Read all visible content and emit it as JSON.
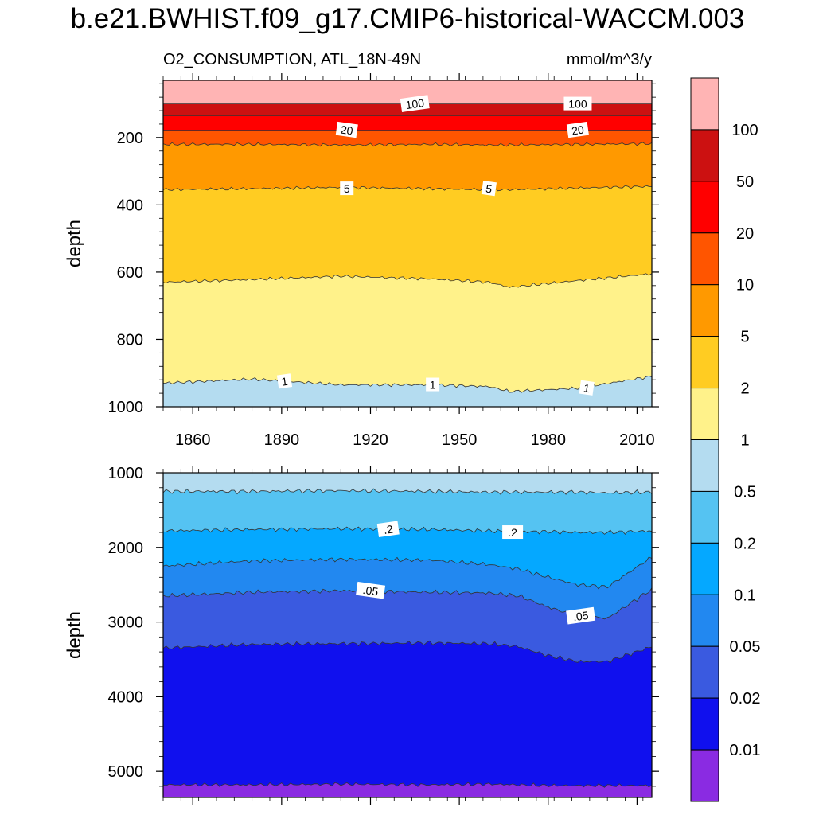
{
  "title": "b.e21.BWHIST.f09_g17.CMIP6-historical-WACCM.003",
  "subtitle_left": "O2_CONSUMPTION, ATL_18N-49N",
  "subtitle_right": "mmol/m^3/y",
  "chart_data": [
    {
      "type": "area",
      "panel": "upper",
      "ylabel": "depth",
      "y_reversed": true,
      "ylim": [
        1000,
        30
      ],
      "xlim": [
        1850,
        2015
      ],
      "x_ticks": [
        1860,
        1890,
        1920,
        1950,
        1980,
        2010
      ],
      "y_ticks": [
        200,
        400,
        600,
        800,
        1000
      ],
      "x": [
        1850,
        1880,
        1910,
        1940,
        1960,
        1967,
        1990,
        2015
      ],
      "boundaries": [
        {
          "level": 100,
          "depths": [
            100,
            100,
            100,
            100,
            100,
            100,
            100,
            100
          ]
        },
        {
          "level": 50,
          "depths": [
            135,
            135,
            135,
            135,
            135,
            135,
            135,
            135
          ]
        },
        {
          "level": 20,
          "depths": [
            178,
            178,
            178,
            178,
            178,
            178,
            178,
            178
          ]
        },
        {
          "level": 10,
          "depths": [
            220,
            220,
            222,
            220,
            222,
            222,
            220,
            218
          ]
        },
        {
          "level": 5,
          "depths": [
            355,
            352,
            348,
            352,
            355,
            355,
            350,
            345
          ]
        },
        {
          "level": 2,
          "depths": [
            630,
            622,
            612,
            620,
            630,
            645,
            625,
            605
          ]
        },
        {
          "level": 1,
          "depths": [
            930,
            918,
            935,
            935,
            940,
            955,
            945,
            910
          ]
        }
      ],
      "contour_labels": [
        {
          "text": "100",
          "x": 1935,
          "depth": 100
        },
        {
          "text": "100",
          "x": 1990,
          "depth": 100
        },
        {
          "text": "20",
          "x": 1912,
          "depth": 178
        },
        {
          "text": "20",
          "x": 1990,
          "depth": 178
        },
        {
          "text": "5",
          "x": 1912,
          "depth": 352
        },
        {
          "text": "5",
          "x": 1960,
          "depth": 352
        },
        {
          "text": "1",
          "x": 1891,
          "depth": 925
        },
        {
          "text": "1",
          "x": 1941,
          "depth": 935
        },
        {
          "text": "1",
          "x": 1993,
          "depth": 945
        }
      ]
    },
    {
      "type": "area",
      "panel": "lower",
      "ylabel": "depth",
      "y_reversed": true,
      "ylim": [
        5350,
        1000
      ],
      "xlim": [
        1850,
        2015
      ],
      "x_ticks": [
        1860,
        1890,
        1920,
        1950,
        1980,
        2010
      ],
      "y_ticks": [
        1000,
        2000,
        3000,
        4000,
        5000
      ],
      "x": [
        1850,
        1880,
        1910,
        1940,
        1960,
        1970,
        1980,
        1990,
        2000,
        2015
      ],
      "boundaries": [
        {
          "level": 0.5,
          "depths": [
            1250,
            1250,
            1240,
            1250,
            1260,
            1260,
            1260,
            1260,
            1270,
            1260
          ]
        },
        {
          "level": 0.2,
          "depths": [
            1780,
            1760,
            1750,
            1760,
            1780,
            1790,
            1790,
            1800,
            1800,
            1780
          ]
        },
        {
          "level": 0.1,
          "depths": [
            2250,
            2180,
            2160,
            2170,
            2230,
            2290,
            2400,
            2500,
            2530,
            2130
          ]
        },
        {
          "level": 0.05,
          "depths": [
            2650,
            2600,
            2580,
            2600,
            2610,
            2650,
            2800,
            2920,
            2950,
            2560
          ]
        },
        {
          "level": 0.02,
          "depths": [
            3350,
            3300,
            3290,
            3280,
            3290,
            3330,
            3450,
            3530,
            3530,
            3330
          ]
        },
        {
          "level": 0.01,
          "depths": [
            5180,
            5180,
            5170,
            5180,
            5170,
            5180,
            5190,
            5190,
            5190,
            5190
          ]
        }
      ],
      "contour_labels": [
        {
          "text": ".2",
          "x": 1926,
          "depth": 1760
        },
        {
          "text": ".2",
          "x": 1968,
          "depth": 1800
        },
        {
          "text": ".05",
          "x": 1920,
          "depth": 2580
        },
        {
          "text": ".05",
          "x": 1991,
          "depth": 2920
        }
      ]
    }
  ],
  "colorbar": {
    "labels": [
      "100",
      "50",
      "20",
      "10",
      "5",
      "2",
      "1",
      "0.5",
      "0.2",
      "0.1",
      "0.05",
      "0.02",
      "0.01"
    ],
    "colors_top_to_bottom": [
      "#ffb4b4",
      "#cc1111",
      "#ff0000",
      "#ff5500",
      "#ff9900",
      "#ffcc22",
      "#fff28a",
      "#b4dcf0",
      "#55c3f2",
      "#05a8ff",
      "#2288f0",
      "#3a5ae0",
      "#1010ee",
      "#8a2be2"
    ]
  }
}
